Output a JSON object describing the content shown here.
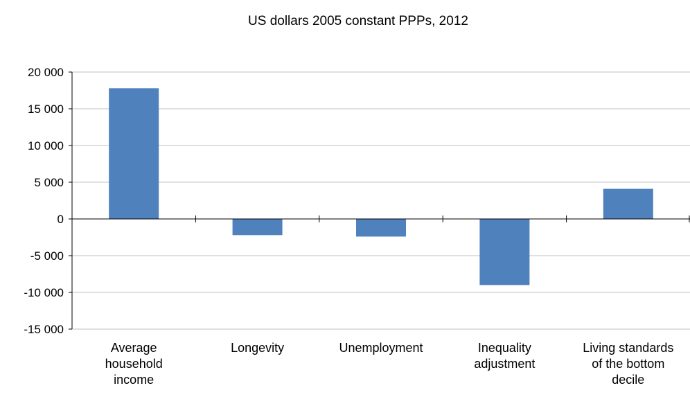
{
  "chart_data": {
    "type": "bar",
    "title": "US dollars 2005 constant PPPs, 2012",
    "xlabel": "",
    "ylabel": "",
    "ylim": [
      -15000,
      20000
    ],
    "yticks": [
      20000,
      15000,
      10000,
      5000,
      0,
      -5000,
      -10000,
      -15000
    ],
    "ytick_labels": [
      "20 000",
      "15 000",
      "10 000",
      "5 000",
      "0",
      "-5 000",
      "-10 000",
      "-15 000"
    ],
    "categories": [
      [
        "Average",
        "household",
        "income"
      ],
      [
        "Longevity"
      ],
      [
        "Unemployment"
      ],
      [
        "Inequality",
        "adjustment"
      ],
      [
        "Living standards",
        "of the bottom",
        "decile"
      ]
    ],
    "values": [
      17800,
      -2200,
      -2400,
      -9000,
      4100
    ],
    "grid": true,
    "legend": "none",
    "bar_color": "#4f81bd",
    "grid_color": "#c0c0c0",
    "axis_color": "#000000"
  }
}
